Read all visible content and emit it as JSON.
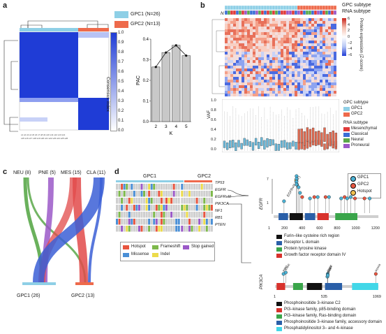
{
  "panels": {
    "a": "a",
    "b": "b",
    "c": "c",
    "d": "d"
  },
  "panel_a": {
    "legend": [
      {
        "label": "GPC1 (N=26)",
        "color": "#8ecfe6"
      },
      {
        "label": "GPC2 (N=13)",
        "color": "#ee6a4b"
      }
    ],
    "consensus_label": "Consensus index",
    "consensus_ticks": [
      "1.0",
      "0.9",
      "0.8",
      "0.7",
      "0.6",
      "0.5",
      "0.4",
      "0.3",
      "0.2",
      "0.1",
      "0.0"
    ],
    "heatmap_color": "#1f3cd6"
  },
  "chart_data": [
    {
      "type": "line",
      "title": "",
      "xlabel": "K",
      "ylabel": "PAC",
      "categories": [
        "2",
        "3",
        "4",
        "5"
      ],
      "bar_values": [
        0.265,
        0.335,
        0.37,
        0.32
      ],
      "values": [
        0.265,
        0.335,
        0.37,
        0.32
      ],
      "ylim": [
        0.0,
        0.4
      ],
      "yticks": [
        "0.0",
        "0.1",
        "0.2",
        "0.3",
        "0.4"
      ]
    }
  ],
  "panel_b": {
    "top_labels": [
      "GPC subtype",
      "RNA subtype"
    ],
    "n_label": "N",
    "colorbar_label": "Protein expression (Z-score)",
    "colorbar_ticks": [
      "6",
      "4",
      "2",
      "0",
      "−2",
      "−4",
      "−6"
    ],
    "vaf_label": "VAF",
    "vaf_ticks": [
      "1.0",
      "0.8",
      "0.6",
      "0.4",
      "0.2",
      "0.0"
    ],
    "legend_gpc_title": "GPC subtype",
    "legend_gpc": [
      {
        "label": "GPC1",
        "color": "#8ecfe6"
      },
      {
        "label": "GPC2",
        "color": "#ee6a4b"
      }
    ],
    "legend_rna_title": "RNA subtype",
    "legend_rna": [
      {
        "label": "Mesenchymal",
        "color": "#e03a3a"
      },
      {
        "label": "Classical",
        "color": "#3b6fd6"
      },
      {
        "label": "Neural",
        "color": "#5aa84a"
      },
      {
        "label": "Proneural",
        "color": "#9b59c8"
      }
    ]
  },
  "panel_c": {
    "top": [
      "NEU (8)",
      "PNE (5)",
      "MES (15)",
      "CLA (11)"
    ],
    "bottom": [
      "GPC1 (26)",
      "GPC2 (13)"
    ]
  },
  "panel_d": {
    "group_labels": [
      "GPC1",
      "GPC2"
    ],
    "genes": [
      "TP53",
      "EGFR",
      "EGFRvIII",
      "PIK3CA",
      "NF1",
      "RB1",
      "PTEN"
    ],
    "mutation_legend": [
      {
        "label": "Hotspot",
        "color": "#e8553f"
      },
      {
        "label": "Frameshift",
        "color": "#7db84a"
      },
      {
        "label": "Stop gained",
        "color": "#9b59c8"
      },
      {
        "label": "Missense",
        "color": "#4a8fd6"
      },
      {
        "label": "Indel",
        "color": "#ecdb4a"
      }
    ],
    "lollipop_legend": [
      {
        "label": "GPC1",
        "color": "#4bb3d6"
      },
      {
        "label": "GPC2",
        "color": "#e8553f"
      },
      {
        "label": "Hotspot",
        "color": "#f2c14e"
      }
    ],
    "egfr": {
      "gene": "EGFR",
      "y_ticks": [
        "7",
        "1"
      ],
      "x_ticks": [
        "1",
        "200",
        "400",
        "600",
        "800",
        "1000",
        "1200"
      ],
      "hotspot_label": "EGFRvIII (267)",
      "domains": [
        {
          "label": "Furin–like cysteine rich region",
          "color": "#111111"
        },
        {
          "label": "Receptor L domain",
          "color": "#2a5fa8"
        },
        {
          "label": "Protein tyrosine kinase",
          "color": "#3aa54a"
        },
        {
          "label": "Growth factor receptor domain IV",
          "color": "#d8322c"
        }
      ]
    },
    "pik3ca": {
      "gene": "PIK3CA",
      "x_ticks": [
        "1",
        "535",
        "1069"
      ],
      "mut_labels": [
        "R88Q",
        "E545K",
        "E542K",
        "M1043I",
        "Q546K",
        "K111E"
      ],
      "domains": [
        {
          "label": "Phosphoinositide 3–kinase C2",
          "color": "#111111"
        },
        {
          "label": "PI3–kinase family, p85-binding domain",
          "color": "#d8322c"
        },
        {
          "label": "PI3–kinase family, Ras-binding domain",
          "color": "#3aa54a"
        },
        {
          "label": "Phosphoinositide 3–kinase family, accessory domain",
          "color": "#2a5fa8"
        },
        {
          "label": "Phosphatidylinositol 3– and 4–kinase",
          "color": "#42d7e8"
        }
      ]
    }
  }
}
